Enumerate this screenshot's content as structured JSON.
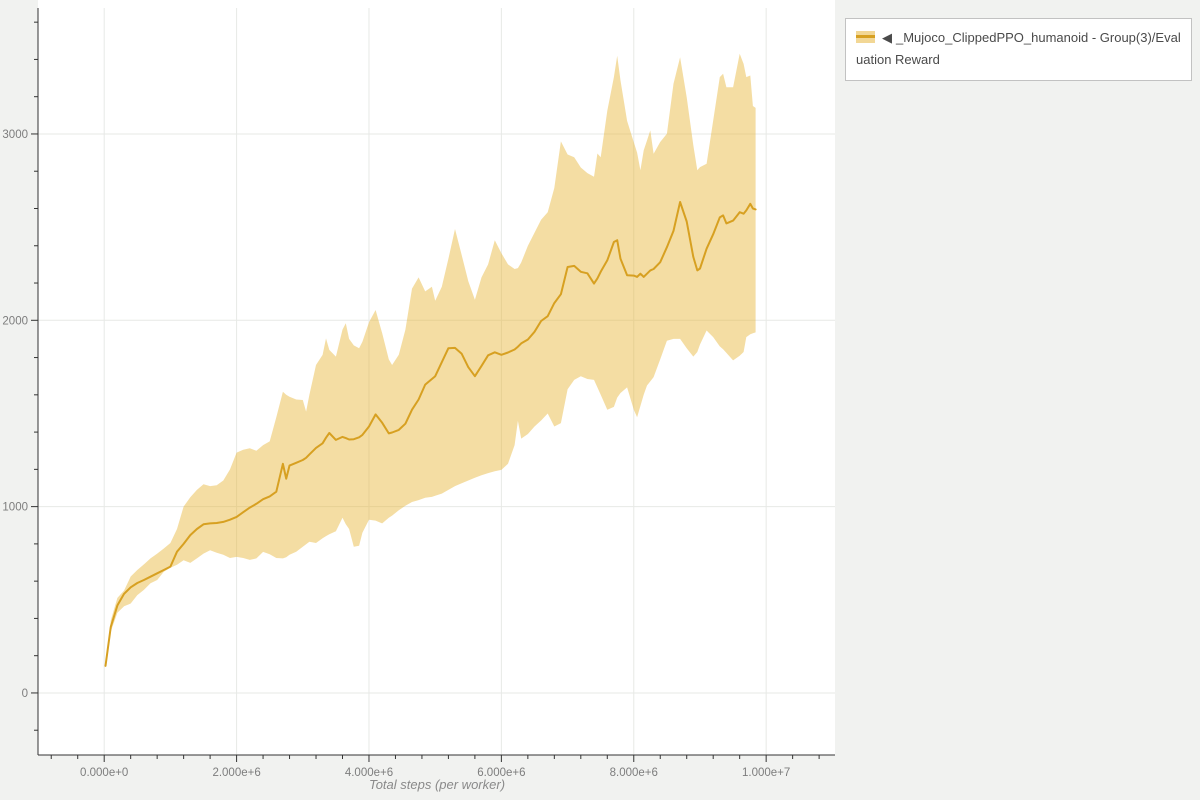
{
  "page": {
    "background": "#f1f2f0"
  },
  "legend": {
    "marker": "◀",
    "label": "_Mujoco_ClippedPPO_humanoid - Group(3)/Evaluation Reward"
  },
  "chart_data": {
    "type": "line",
    "title": "",
    "xlabel": "Total steps (per worker)",
    "ylabel": "",
    "grid": true,
    "legend_position": "top-right",
    "plot_bg": "#ffffff",
    "grid_color": "#e7e9e6",
    "axis_color": "#333333",
    "x_axis": {
      "label": "Total steps (per worker)",
      "tick_labels": [
        "0.000e+0",
        "2.000e+6",
        "4.000e+6",
        "6.000e+6",
        "8.000e+6",
        "1.000e+7"
      ],
      "tick_values": [
        0,
        2000000,
        4000000,
        6000000,
        8000000,
        10000000
      ],
      "minor_step": 400000,
      "range": [
        -1000000,
        11040000
      ]
    },
    "y_axis": {
      "label": "",
      "tick_labels": [
        "0",
        "1000",
        "2000",
        "3000"
      ],
      "tick_values": [
        0,
        1000,
        2000,
        3000
      ],
      "minor_step": 200,
      "range": [
        -333,
        3676
      ]
    },
    "x_unit": "steps (x values stored in millions)",
    "series": [
      {
        "name": "_Mujoco_ClippedPPO_humanoid - Group(3)/Evaluation Reward",
        "color": "#d7a021",
        "band_color": "rgba(230,180,50,0.45)",
        "x": [
          0.02,
          0.1,
          0.2,
          0.3,
          0.4,
          0.5,
          0.6,
          0.7,
          0.8,
          0.9,
          1.0,
          1.1,
          1.2,
          1.3,
          1.4,
          1.5,
          1.6,
          1.7,
          1.8,
          1.9,
          2.0,
          2.1,
          2.2,
          2.3,
          2.4,
          2.5,
          2.6,
          2.7,
          2.75,
          2.8,
          2.9,
          3.0,
          3.05,
          3.1,
          3.2,
          3.3,
          3.35,
          3.4,
          3.5,
          3.6,
          3.65,
          3.7,
          3.77,
          3.85,
          3.9,
          4.0,
          4.1,
          4.2,
          4.3,
          4.35,
          4.45,
          4.55,
          4.65,
          4.75,
          4.85,
          4.95,
          5.0,
          5.1,
          5.2,
          5.3,
          5.4,
          5.5,
          5.6,
          5.7,
          5.8,
          5.9,
          6.0,
          6.1,
          6.2,
          6.25,
          6.3,
          6.4,
          6.5,
          6.6,
          6.7,
          6.8,
          6.9,
          7.0,
          7.1,
          7.2,
          7.3,
          7.4,
          7.45,
          7.5,
          7.6,
          7.7,
          7.75,
          7.8,
          7.9,
          8.0,
          8.05,
          8.1,
          8.15,
          8.2,
          8.25,
          8.3,
          8.4,
          8.5,
          8.6,
          8.7,
          8.8,
          8.9,
          8.96,
          9.0,
          9.1,
          9.2,
          9.3,
          9.35,
          9.4,
          9.5,
          9.6,
          9.66,
          9.7,
          9.76,
          9.8,
          9.84
        ],
        "mean": [
          145,
          355,
          470,
          532,
          567,
          590,
          606,
          624,
          642,
          660,
          678,
          758,
          800,
          847,
          880,
          905,
          910,
          912,
          918,
          930,
          945,
          970,
          995,
          1015,
          1040,
          1055,
          1080,
          1230,
          1150,
          1220,
          1235,
          1250,
          1262,
          1280,
          1315,
          1340,
          1370,
          1395,
          1358,
          1374,
          1368,
          1360,
          1362,
          1372,
          1385,
          1430,
          1495,
          1450,
          1393,
          1398,
          1412,
          1445,
          1520,
          1575,
          1655,
          1685,
          1700,
          1775,
          1850,
          1852,
          1820,
          1748,
          1700,
          1755,
          1812,
          1828,
          1815,
          1827,
          1843,
          1858,
          1876,
          1897,
          1938,
          1996,
          2022,
          2092,
          2140,
          2286,
          2292,
          2260,
          2252,
          2197,
          2225,
          2260,
          2322,
          2420,
          2430,
          2330,
          2242,
          2240,
          2233,
          2250,
          2233,
          2250,
          2268,
          2275,
          2312,
          2392,
          2480,
          2635,
          2530,
          2340,
          2268,
          2278,
          2384,
          2462,
          2552,
          2563,
          2520,
          2535,
          2580,
          2572,
          2590,
          2625,
          2600,
          2595
        ],
        "lower": [
          140,
          330,
          430,
          465,
          480,
          525,
          553,
          589,
          606,
          650,
          672,
          688,
          712,
          698,
          722,
          748,
          766,
          752,
          742,
          724,
          730,
          724,
          714,
          722,
          757,
          744,
          724,
          722,
          728,
          742,
          758,
          785,
          798,
          812,
          805,
          830,
          842,
          852,
          868,
          940,
          905,
          880,
          785,
          790,
          860,
          930,
          925,
          910,
          940,
          952,
          980,
          1005,
          1025,
          1035,
          1048,
          1052,
          1058,
          1070,
          1090,
          1110,
          1125,
          1140,
          1155,
          1168,
          1180,
          1190,
          1197,
          1230,
          1330,
          1460,
          1365,
          1390,
          1430,
          1462,
          1500,
          1430,
          1448,
          1630,
          1680,
          1700,
          1685,
          1680,
          1640,
          1600,
          1520,
          1535,
          1585,
          1610,
          1640,
          1520,
          1480,
          1540,
          1600,
          1650,
          1672,
          1695,
          1790,
          1890,
          1900,
          1900,
          1850,
          1805,
          1830,
          1870,
          1945,
          1910,
          1860,
          1845,
          1825,
          1785,
          1810,
          1830,
          1910,
          1925,
          1930,
          1935
        ],
        "upper": [
          150,
          390,
          510,
          550,
          625,
          660,
          690,
          722,
          748,
          775,
          805,
          880,
          1000,
          1050,
          1090,
          1120,
          1110,
          1115,
          1140,
          1200,
          1290,
          1305,
          1313,
          1300,
          1330,
          1350,
          1480,
          1617,
          1600,
          1590,
          1575,
          1572,
          1510,
          1600,
          1760,
          1814,
          1903,
          1841,
          1805,
          1950,
          1984,
          1900,
          1865,
          1850,
          1885,
          1990,
          2055,
          1930,
          1790,
          1760,
          1815,
          1950,
          2170,
          2230,
          2155,
          2180,
          2105,
          2180,
          2330,
          2490,
          2350,
          2210,
          2110,
          2230,
          2300,
          2430,
          2360,
          2300,
          2275,
          2280,
          2310,
          2400,
          2470,
          2540,
          2580,
          2710,
          2960,
          2890,
          2875,
          2820,
          2790,
          2770,
          2895,
          2875,
          3125,
          3305,
          3420,
          3287,
          3070,
          2955,
          2900,
          2805,
          2912,
          2965,
          3019,
          2894,
          2957,
          3001,
          3270,
          3412,
          3197,
          2940,
          2805,
          2822,
          2840,
          3072,
          3305,
          3323,
          3251,
          3251,
          3430,
          3376,
          3305,
          3314,
          3150,
          3140
        ]
      }
    ]
  }
}
